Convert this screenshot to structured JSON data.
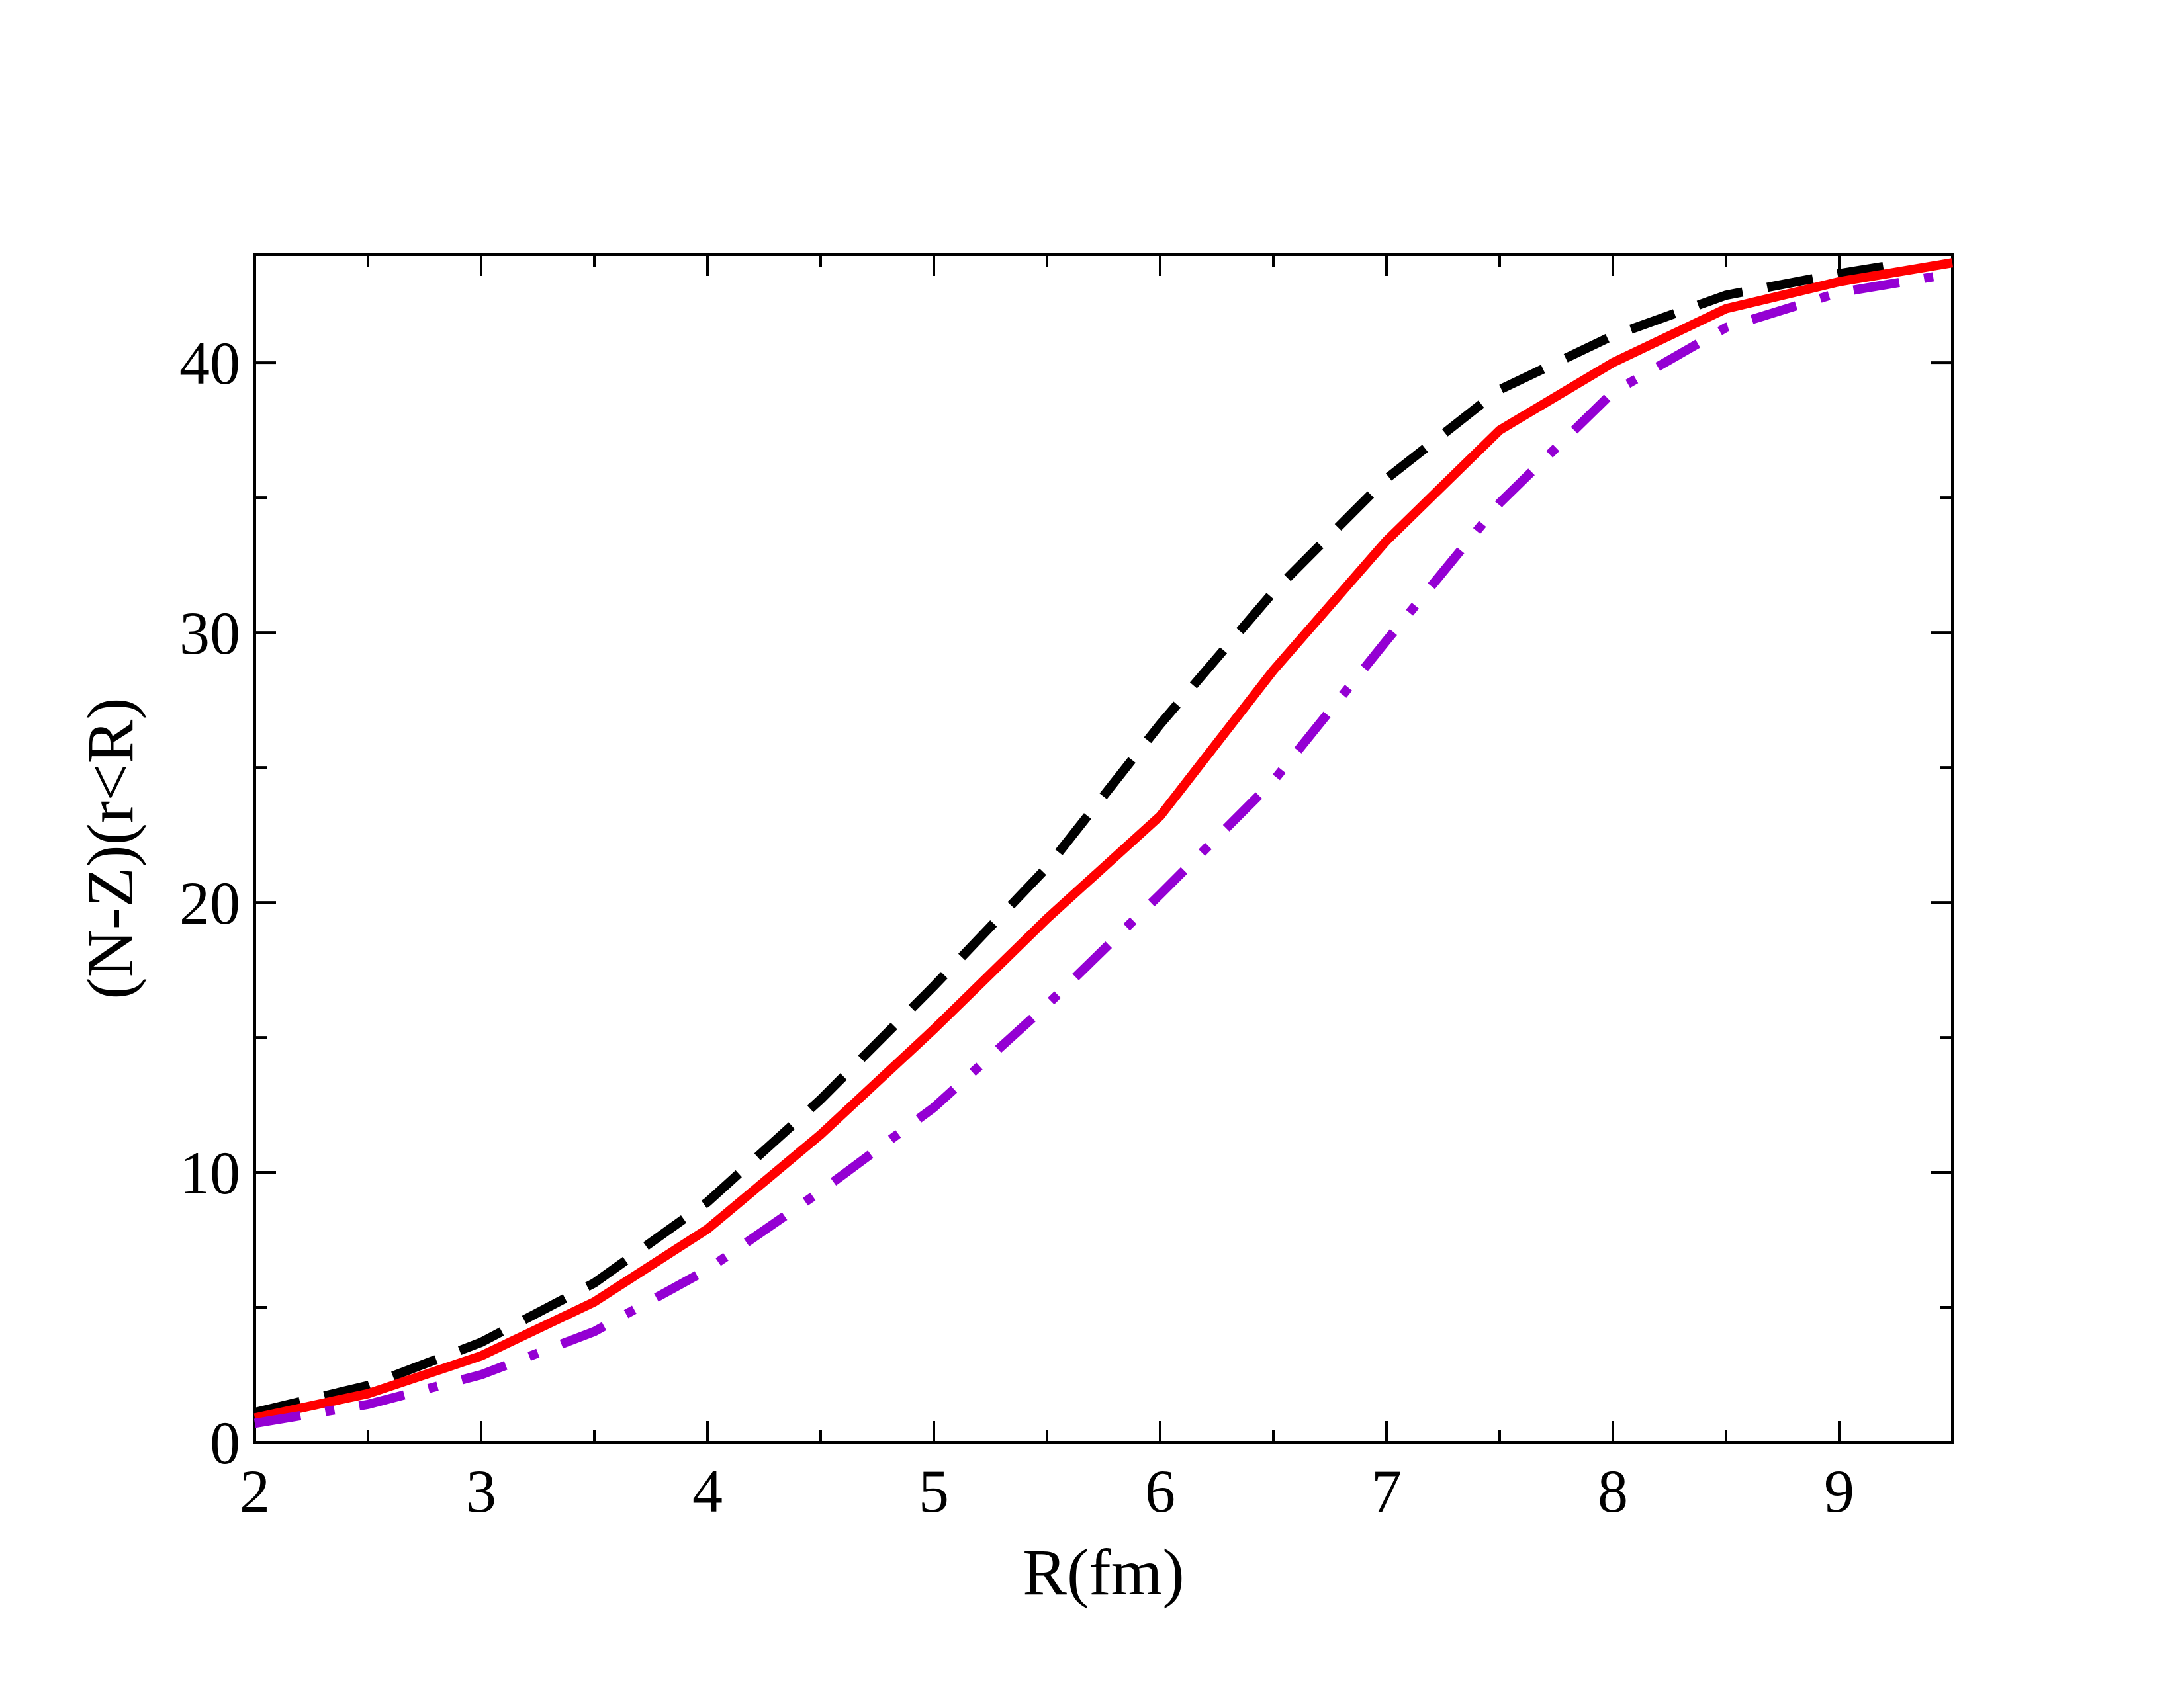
{
  "chart_data": {
    "type": "line",
    "title": "",
    "xlabel": "R(fm)",
    "ylabel": "(N-Z)(r<R)",
    "xlim": [
      2,
      9.5
    ],
    "ylim": [
      0,
      44
    ],
    "x_ticks": [
      2,
      3,
      4,
      5,
      6,
      7,
      8,
      9
    ],
    "x_tick_labels": [
      "2",
      "3",
      "4",
      "5",
      "6",
      "7",
      "8",
      "9"
    ],
    "y_ticks": [
      0,
      10,
      20,
      30,
      40
    ],
    "y_tick_labels": [
      "0",
      "10",
      "20",
      "30",
      "40"
    ],
    "grid": false,
    "series": [
      {
        "color": "#000000",
        "style": "dashed",
        "x": [
          2.0,
          2.5,
          3.0,
          3.5,
          4.0,
          4.5,
          5.0,
          5.5,
          6.0,
          6.5,
          7.0,
          7.5,
          8.0,
          8.5,
          9.0,
          9.3
        ],
        "y": [
          1.1,
          2.1,
          3.7,
          5.9,
          8.9,
          12.7,
          16.9,
          21.3,
          26.6,
          31.5,
          35.7,
          39.0,
          41.0,
          42.5,
          43.3,
          43.7
        ]
      },
      {
        "color": "#ff0000",
        "style": "solid",
        "x": [
          2.0,
          2.5,
          3.0,
          3.5,
          4.0,
          4.5,
          5.0,
          5.5,
          6.0,
          6.5,
          7.0,
          7.5,
          8.0,
          8.5,
          9.0,
          9.5
        ],
        "y": [
          0.9,
          1.8,
          3.2,
          5.2,
          7.9,
          11.4,
          15.3,
          19.4,
          23.2,
          28.6,
          33.4,
          37.5,
          40.0,
          42.0,
          43.0,
          43.7
        ]
      },
      {
        "color": "#9400d3",
        "style": "dash-dot",
        "x": [
          2.0,
          2.5,
          3.0,
          3.5,
          4.0,
          4.5,
          5.0,
          5.5,
          6.0,
          6.5,
          7.0,
          7.5,
          8.0,
          8.5,
          9.0,
          9.5
        ],
        "y": [
          0.7,
          1.4,
          2.5,
          4.1,
          6.4,
          9.3,
          12.4,
          16.2,
          20.3,
          24.5,
          29.7,
          34.8,
          38.9,
          41.3,
          42.6,
          43.3
        ]
      }
    ]
  }
}
